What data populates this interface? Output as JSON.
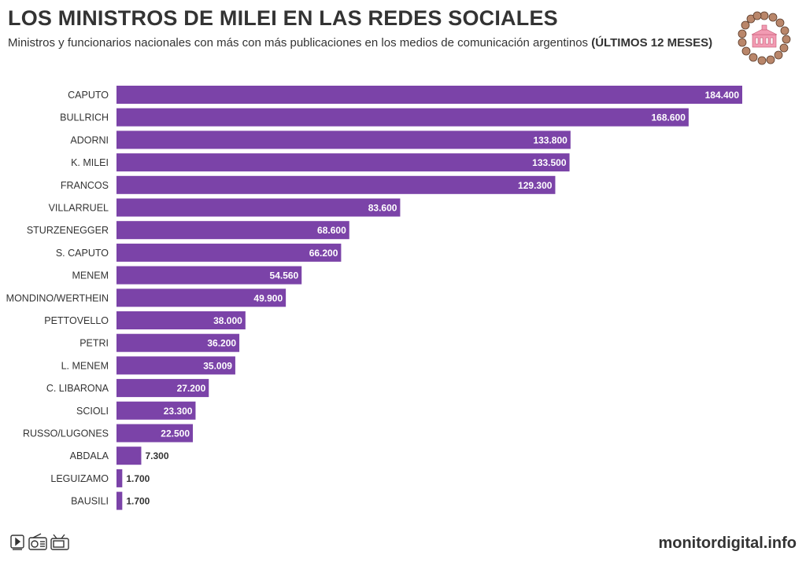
{
  "header": {
    "title": "LOS MINISTROS DE MILEI EN LAS REDES SOCIALES",
    "subtitle": "Ministros y funcionarios nacionales con más con más publicaciones en los medios de comunicación argentinos",
    "subtitle_bold": "(ÚLTIMOS 12 MESES)"
  },
  "footer": {
    "brand": "monitordigital.info"
  },
  "colors": {
    "bar": "#7b43a8",
    "label_inside": "#ffffff",
    "label_outside": "#333333"
  },
  "chart_data": {
    "type": "bar",
    "orientation": "horizontal",
    "title": "LOS MINISTROS DE MILEI EN LAS REDES SOCIALES",
    "xlabel": "",
    "ylabel": "",
    "xlim": [
      0,
      184400
    ],
    "grid": false,
    "categories": [
      "CAPUTO",
      "BULLRICH",
      "ADORNI",
      "K. MILEI",
      "FRANCOS",
      "VILLARRUEL",
      "STURZENEGGER",
      "S. CAPUTO",
      "MENEM",
      "MONDINO/WERTHEIN",
      "PETTOVELLO",
      "PETRI",
      "L. MENEM",
      "C. LIBARONA",
      "SCIOLI",
      "RUSSO/LUGONES",
      "ABDALA",
      "LEGUIZAMO",
      "BAUSILI"
    ],
    "values": [
      184400,
      168600,
      133800,
      133500,
      129300,
      83600,
      68600,
      66200,
      54560,
      49900,
      38000,
      36200,
      35009,
      27200,
      23300,
      22500,
      7300,
      1700,
      1700
    ],
    "value_labels": [
      "184.400",
      "168.600",
      "133.800",
      "133.500",
      "129.300",
      "83.600",
      "68.600",
      "66.200",
      "54.560",
      "49.900",
      "38.000",
      "36.200",
      "35.009",
      "27.200",
      "23.300",
      "22.500",
      "7.300",
      "1.700",
      "1.700"
    ]
  }
}
